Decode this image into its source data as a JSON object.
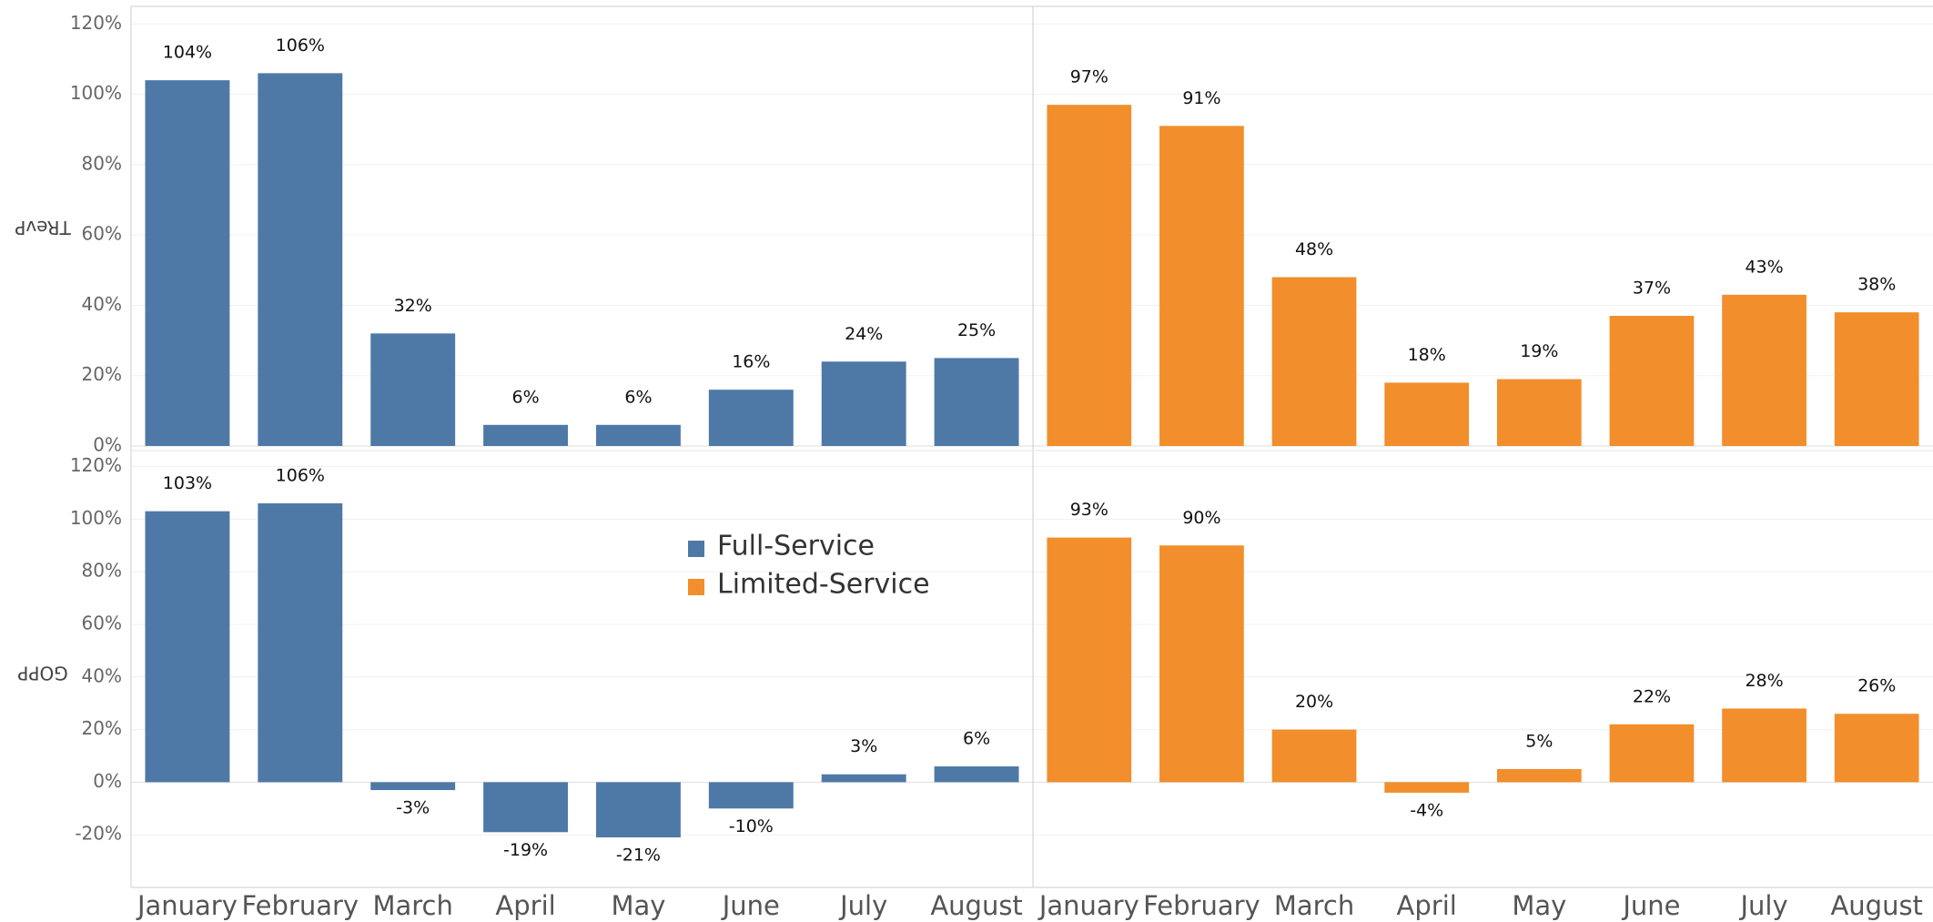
{
  "chart_data": {
    "type": "bar",
    "categories": [
      "January",
      "February",
      "March",
      "April",
      "May",
      "June",
      "July",
      "August"
    ],
    "rows": [
      {
        "label": "TRevP",
        "ylim": [
          0,
          125
        ],
        "yticks": [
          {
            "value": 0,
            "label": "0%"
          },
          {
            "value": 20,
            "label": "20%"
          },
          {
            "value": 40,
            "label": "40%"
          },
          {
            "value": 60,
            "label": "60%"
          },
          {
            "value": 80,
            "label": "80%"
          },
          {
            "value": 100,
            "label": "100%"
          },
          {
            "value": 120,
            "label": "120%"
          }
        ]
      },
      {
        "label": "GOPP",
        "ylim": [
          -40,
          124
        ],
        "yticks": [
          {
            "value": -20,
            "label": "-20%"
          },
          {
            "value": 0,
            "label": "0%"
          },
          {
            "value": 20,
            "label": "20%"
          },
          {
            "value": 40,
            "label": "40%"
          },
          {
            "value": 60,
            "label": "60%"
          },
          {
            "value": 80,
            "label": "80%"
          },
          {
            "value": 100,
            "label": "100%"
          },
          {
            "value": 120,
            "label": "120%"
          }
        ]
      }
    ],
    "series": [
      {
        "name": "Full-Service",
        "color": "#4e79a7",
        "values": [
          [
            104,
            106,
            32,
            6,
            6,
            16,
            24,
            25
          ],
          [
            103,
            106,
            -3,
            -19,
            -21,
            -10,
            3,
            6
          ]
        ],
        "value_labels": [
          [
            "104%",
            "106%",
            "32%",
            "6%",
            "6%",
            "16%",
            "24%",
            "25%"
          ],
          [
            "103%",
            "106%",
            "-3%",
            "-19%",
            "-21%",
            "-10%",
            "3%",
            "6%"
          ]
        ]
      },
      {
        "name": "Limited-Service",
        "color": "#f28e2b",
        "values": [
          [
            97,
            91,
            48,
            18,
            19,
            37,
            43,
            38
          ],
          [
            93,
            90,
            20,
            -4,
            5,
            22,
            28,
            26
          ]
        ],
        "value_labels": [
          [
            "97%",
            "91%",
            "48%",
            "18%",
            "19%",
            "37%",
            "43%",
            "38%"
          ],
          [
            "93%",
            "90%",
            "20%",
            "-4%",
            "5%",
            "22%",
            "28%",
            "26%"
          ]
        ]
      }
    ],
    "grid": true
  }
}
